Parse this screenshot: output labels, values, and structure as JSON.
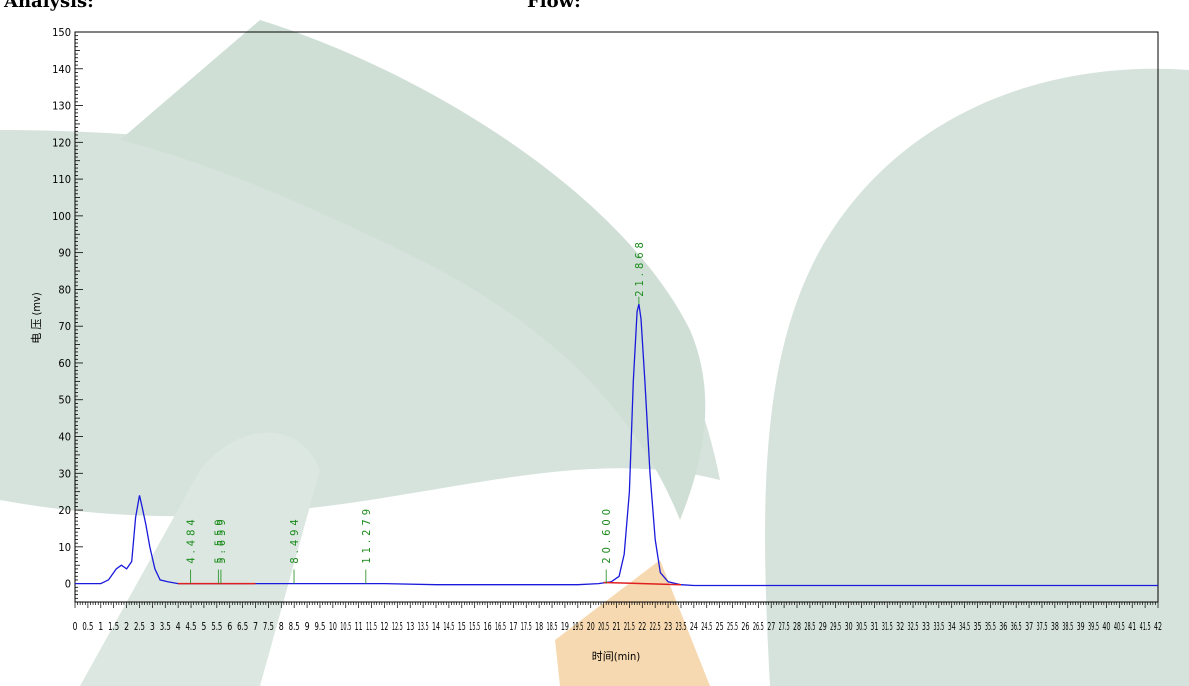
{
  "header": {
    "left_text": "Analysis:",
    "right_text": "Flow:"
  },
  "chart_data": {
    "type": "line",
    "title": "",
    "xlabel": "时间(min)",
    "ylabel": "电 压 (mv)",
    "xlim": [
      0,
      42
    ],
    "ylim": [
      -5,
      150
    ],
    "x_ticks": [
      "0",
      "0.5",
      "1",
      "1.5",
      "2",
      "2.5",
      "3",
      "3.5",
      "4",
      "4.5",
      "5",
      "5.5",
      "6",
      "6.5",
      "7",
      "7.5",
      "8",
      "8.5",
      "9",
      "9.5",
      "10",
      "10.5",
      "11",
      "11.5",
      "12",
      "12.5",
      "13",
      "13.5",
      "14",
      "14.5",
      "15",
      "15.5",
      "16",
      "16.5",
      "17",
      "17.5",
      "18",
      "18.5",
      "19",
      "19.5",
      "20",
      "20.5",
      "21",
      "21.5",
      "22",
      "22.5",
      "23",
      "23.5",
      "24",
      "24.5",
      "25",
      "25.5",
      "26",
      "26.5",
      "27",
      "27.5",
      "28",
      "28.5",
      "29",
      "29.5",
      "30",
      "30.5",
      "31",
      "31.5",
      "32",
      "32.5",
      "33",
      "33.5",
      "34",
      "34.5",
      "35",
      "35.5",
      "36",
      "36.5",
      "37",
      "37.5",
      "38",
      "38.5",
      "39",
      "39.5",
      "40",
      "40.5",
      "41",
      "41.5",
      "42"
    ],
    "y_ticks": [
      "0",
      "10",
      "20",
      "30",
      "40",
      "50",
      "60",
      "70",
      "80",
      "90",
      "100",
      "110",
      "120",
      "130",
      "140",
      "150"
    ],
    "grid": false,
    "series": [
      {
        "color": "#1a1adc",
        "x": [
          0,
          1.0,
          1.3,
          1.6,
          1.8,
          2.0,
          2.2,
          2.35,
          2.5,
          2.6,
          2.75,
          2.9,
          3.1,
          3.3,
          3.6,
          4.0,
          4.5,
          5.5,
          6.5,
          8.0,
          10.0,
          12.0,
          14.0,
          16.0,
          18.0,
          19.5,
          20.3,
          20.8,
          21.1,
          21.3,
          21.5,
          21.65,
          21.8,
          21.87,
          21.95,
          22.1,
          22.3,
          22.5,
          22.7,
          23.0,
          23.5,
          24.0,
          30.0,
          42.0
        ],
        "y": [
          0,
          0,
          1,
          4,
          5,
          4,
          6,
          18,
          24,
          21,
          16,
          10,
          4,
          1,
          0.5,
          0,
          0,
          0,
          0,
          0,
          0,
          0,
          -0.3,
          -0.3,
          -0.3,
          -0.3,
          0,
          0.5,
          2,
          8,
          25,
          55,
          74,
          76,
          72,
          55,
          30,
          12,
          3,
          0.5,
          -0.3,
          -0.5,
          -0.5,
          -0.5
        ]
      },
      {
        "color": "#e02020",
        "x": [
          4.0,
          7.0
        ],
        "y": [
          0,
          0
        ]
      },
      {
        "color": "#e02020",
        "x": [
          20.5,
          23.5
        ],
        "y": [
          0.3,
          -0.3
        ]
      }
    ],
    "peak_labels": [
      {
        "x": 4.484,
        "text": "4.484"
      },
      {
        "x": 5.559,
        "text": "5.559"
      },
      {
        "x": 5.659,
        "text": "5.659"
      },
      {
        "x": 8.494,
        "text": "8.494"
      },
      {
        "x": 11.279,
        "text": "11.279"
      },
      {
        "x": 20.6,
        "text": "20.600"
      },
      {
        "x": 21.868,
        "text": "21.868"
      }
    ]
  }
}
